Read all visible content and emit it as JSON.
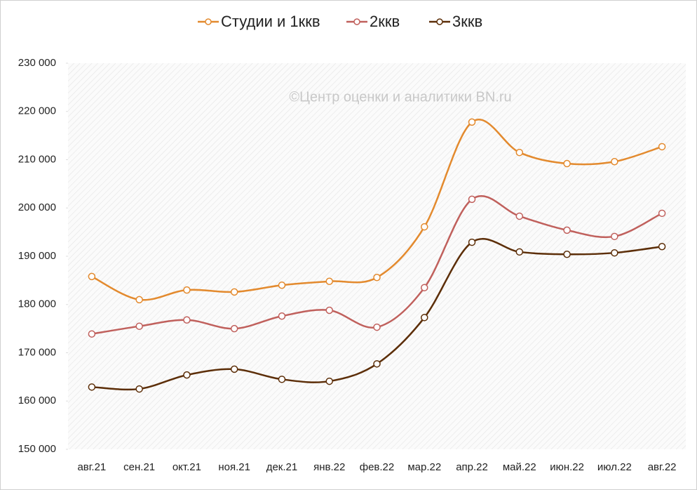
{
  "chart_data": {
    "type": "line",
    "annotation": "©Центр оценки и аналитики BN.ru",
    "categories": [
      "авг.21",
      "сен.21",
      "окт.21",
      "ноя.21",
      "дек.21",
      "янв.22",
      "фев.22",
      "мар.22",
      "апр.22",
      "май.22",
      "июн.22",
      "июл.22",
      "авг.22"
    ],
    "series": [
      {
        "name": "Студии и 1ккв",
        "color": "#e38a2e",
        "values": [
          185800,
          181000,
          183000,
          182600,
          184000,
          184800,
          185600,
          196100,
          217800,
          211500,
          209200,
          209600,
          212700
        ]
      },
      {
        "name": "2ккв",
        "color": "#c0605c",
        "values": [
          173900,
          175500,
          176800,
          175000,
          177600,
          178800,
          175300,
          183500,
          201800,
          198300,
          195400,
          194100,
          198900
        ]
      },
      {
        "name": "3ккв",
        "color": "#5c2e08",
        "values": [
          162900,
          162500,
          165400,
          166600,
          164500,
          164100,
          167700,
          177300,
          192900,
          190900,
          190400,
          190700,
          192000
        ]
      }
    ],
    "ylim": [
      150000,
      230000
    ],
    "yticks": [
      {
        "value": 150000,
        "label": "150 000"
      },
      {
        "value": 160000,
        "label": "160 000"
      },
      {
        "value": 170000,
        "label": "170 000"
      },
      {
        "value": 180000,
        "label": "180 000"
      },
      {
        "value": 190000,
        "label": "190 000"
      },
      {
        "value": 200000,
        "label": "200 000"
      },
      {
        "value": 210000,
        "label": "210 000"
      },
      {
        "value": 220000,
        "label": "220 000"
      },
      {
        "value": 230000,
        "label": "230 000"
      }
    ],
    "legend": "top",
    "smooth": true
  }
}
